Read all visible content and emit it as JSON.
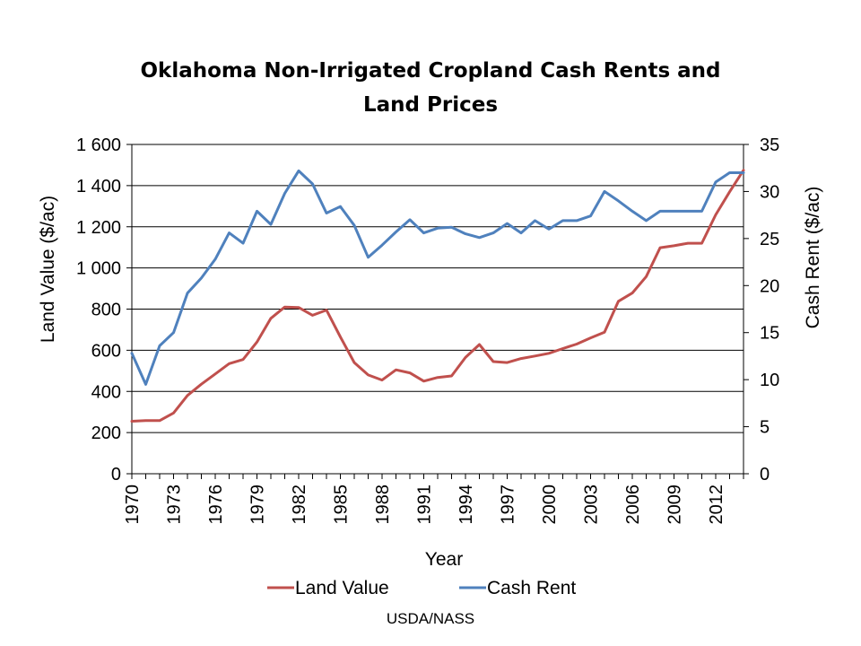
{
  "chart_data": {
    "type": "line",
    "title_lines": [
      "Oklahoma Non-Irrigated Cropland Cash Rents and",
      "Land Prices"
    ],
    "xlabel": "Year",
    "ylabel_left": "Land Value ($/ac)",
    "ylabel_right": "Cash Rent ($/ac)",
    "y_left_range": [
      0,
      1600
    ],
    "y_right_range": [
      0,
      35
    ],
    "y_left_ticks": [
      "0",
      "200",
      "400",
      "600",
      "800",
      "1 000",
      "1 200",
      "1 400",
      "1 600"
    ],
    "y_right_ticks": [
      "0",
      "5",
      "10",
      "15",
      "20",
      "25",
      "30",
      "35"
    ],
    "x_ticks": [
      "1970",
      "1973",
      "1976",
      "1979",
      "1982",
      "1985",
      "1988",
      "1991",
      "1994",
      "1997",
      "2000",
      "2003",
      "2006",
      "2009",
      "2012"
    ],
    "x": [
      1970,
      1971,
      1972,
      1973,
      1974,
      1975,
      1976,
      1977,
      1978,
      1979,
      1980,
      1981,
      1982,
      1983,
      1984,
      1985,
      1986,
      1987,
      1988,
      1989,
      1990,
      1991,
      1992,
      1993,
      1994,
      1995,
      1996,
      1997,
      1998,
      1999,
      2000,
      2001,
      2002,
      2003,
      2004,
      2005,
      2006,
      2007,
      2008,
      2009,
      2010,
      2011,
      2012,
      2013,
      2014
    ],
    "gridlines": "horizontal",
    "legend_position": "bottom",
    "series": [
      {
        "name": "Land Value",
        "axis": "left",
        "color": "#c0504d",
        "values": [
          255,
          258,
          258,
          295,
          380,
          435,
          485,
          535,
          555,
          640,
          755,
          810,
          808,
          770,
          795,
          665,
          540,
          480,
          455,
          505,
          490,
          450,
          468,
          475,
          565,
          628,
          545,
          540,
          560,
          572,
          585,
          608,
          630,
          660,
          688,
          838,
          878,
          958,
          1098,
          1108,
          1120,
          1120,
          1258,
          1370,
          1475
        ]
      },
      {
        "name": "Cash Rent",
        "axis": "right",
        "color": "#4f81bd",
        "values": [
          12.8,
          9.5,
          13.6,
          15.0,
          19.2,
          20.8,
          22.8,
          25.6,
          24.5,
          27.9,
          26.5,
          29.8,
          32.2,
          30.8,
          27.7,
          28.4,
          26.4,
          23.0,
          24.3,
          25.7,
          27.0,
          25.6,
          26.1,
          26.2,
          25.5,
          25.1,
          25.6,
          26.6,
          25.6,
          26.9,
          26.0,
          26.9,
          26.9,
          27.4,
          30.0,
          29.0,
          27.9,
          26.9,
          27.9,
          27.9,
          27.9,
          27.9,
          31.0,
          32.0,
          32.0
        ]
      }
    ]
  },
  "source_note": "USDA/NASS"
}
